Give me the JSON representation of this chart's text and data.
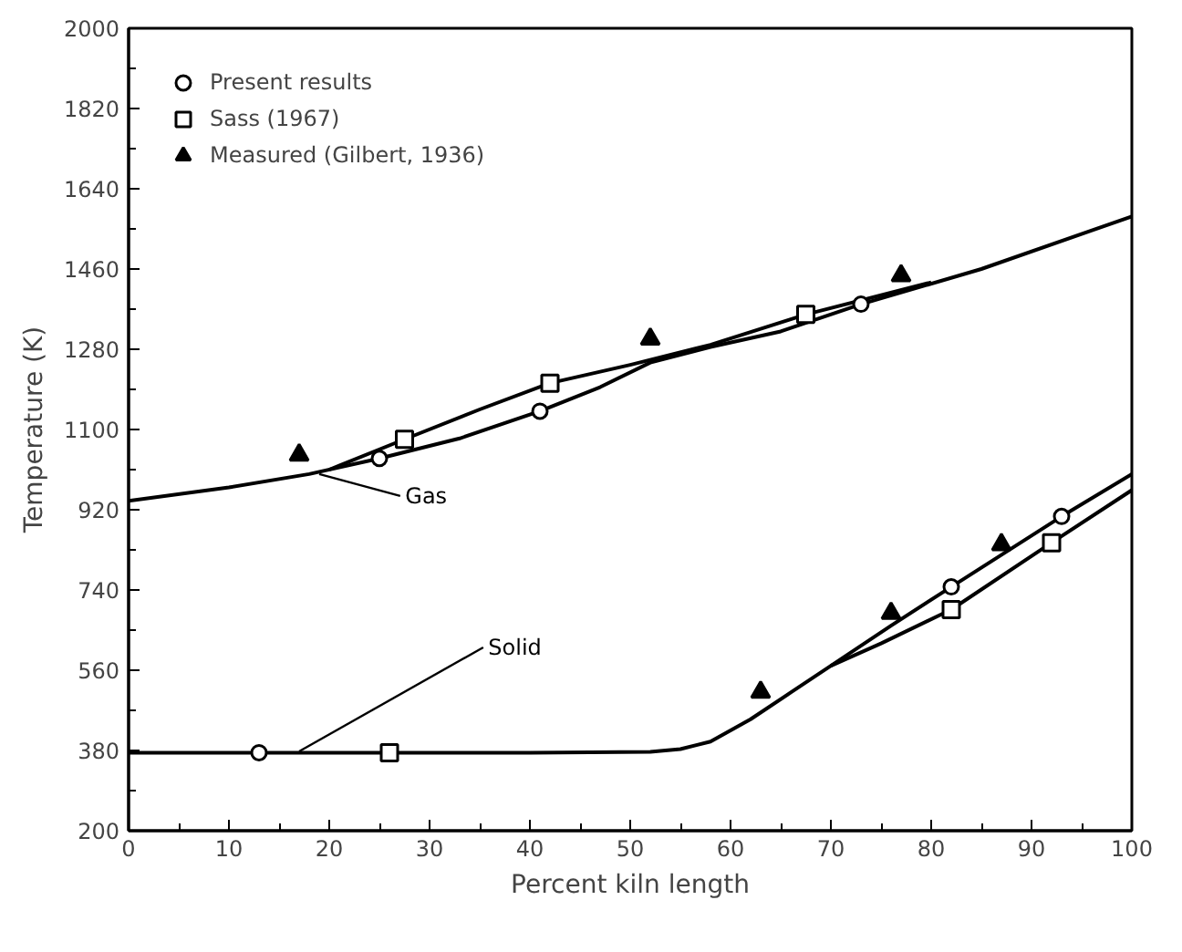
{
  "chart_data": {
    "type": "line",
    "xlabel": "Percent kiln length",
    "ylabel": "Temperature (K)",
    "xlim": [
      0,
      100
    ],
    "ylim": [
      200,
      2000
    ],
    "xticks": [
      0,
      10,
      20,
      30,
      40,
      50,
      60,
      70,
      80,
      90,
      100
    ],
    "yticks": [
      200,
      380,
      560,
      740,
      920,
      1100,
      1280,
      1460,
      1640,
      1820,
      2000
    ],
    "grid": false,
    "legend": "top left",
    "line_style": "solid",
    "series": [
      {
        "color": "#000000",
        "x": [
          0,
          10,
          18,
          25,
          33,
          41,
          47,
          52,
          58,
          65,
          73,
          85,
          100
        ],
        "values": [
          940,
          970,
          1000,
          1035,
          1080,
          1141,
          1195,
          1250,
          1285,
          1320,
          1381,
          1460,
          1578
        ]
      },
      {
        "color": "#000000",
        "x": [
          20,
          27.5,
          35,
          42,
          50,
          58,
          67.5,
          80
        ],
        "values": [
          1010,
          1078,
          1145,
          1204,
          1245,
          1290,
          1358,
          1430
        ]
      },
      {
        "color": "#000000",
        "x": [
          0,
          13,
          26,
          40,
          52,
          55,
          58,
          62,
          66,
          70,
          76,
          82,
          93,
          100
        ],
        "values": [
          375,
          375,
          375,
          375,
          377,
          383,
          400,
          450,
          510,
          570,
          660,
          747,
          905,
          1000
        ]
      },
      {
        "color": "#000000",
        "x": [
          70,
          75,
          82,
          92,
          100
        ],
        "values": [
          570,
          620,
          696,
          846,
          964
        ]
      },
      {
        "type": "scatter",
        "name": "Present results",
        "marker": "circle",
        "color": "#000000",
        "x": [
          25,
          41,
          73,
          13,
          82,
          93
        ],
        "values": [
          1035,
          1141,
          1381,
          375,
          747,
          905
        ]
      },
      {
        "type": "scatter",
        "name": "Sass (1967)",
        "marker": "square",
        "color": "#000000",
        "x": [
          27.5,
          42,
          67.5,
          26,
          82,
          92
        ],
        "values": [
          1078,
          1204,
          1358,
          375,
          696,
          846
        ]
      },
      {
        "type": "scatter",
        "name": "Measured (Gilbert, 1936)",
        "marker": "triangle",
        "color": "#000000",
        "x": [
          17,
          52,
          77,
          63,
          76,
          87
        ],
        "values": [
          1043,
          1303,
          1445,
          511,
          688,
          842
        ]
      }
    ],
    "annotations": [
      {
        "text": "Gas",
        "x": 19,
        "y": 1000
      },
      {
        "text": "Solid",
        "x": 17,
        "y": 378
      }
    ]
  }
}
